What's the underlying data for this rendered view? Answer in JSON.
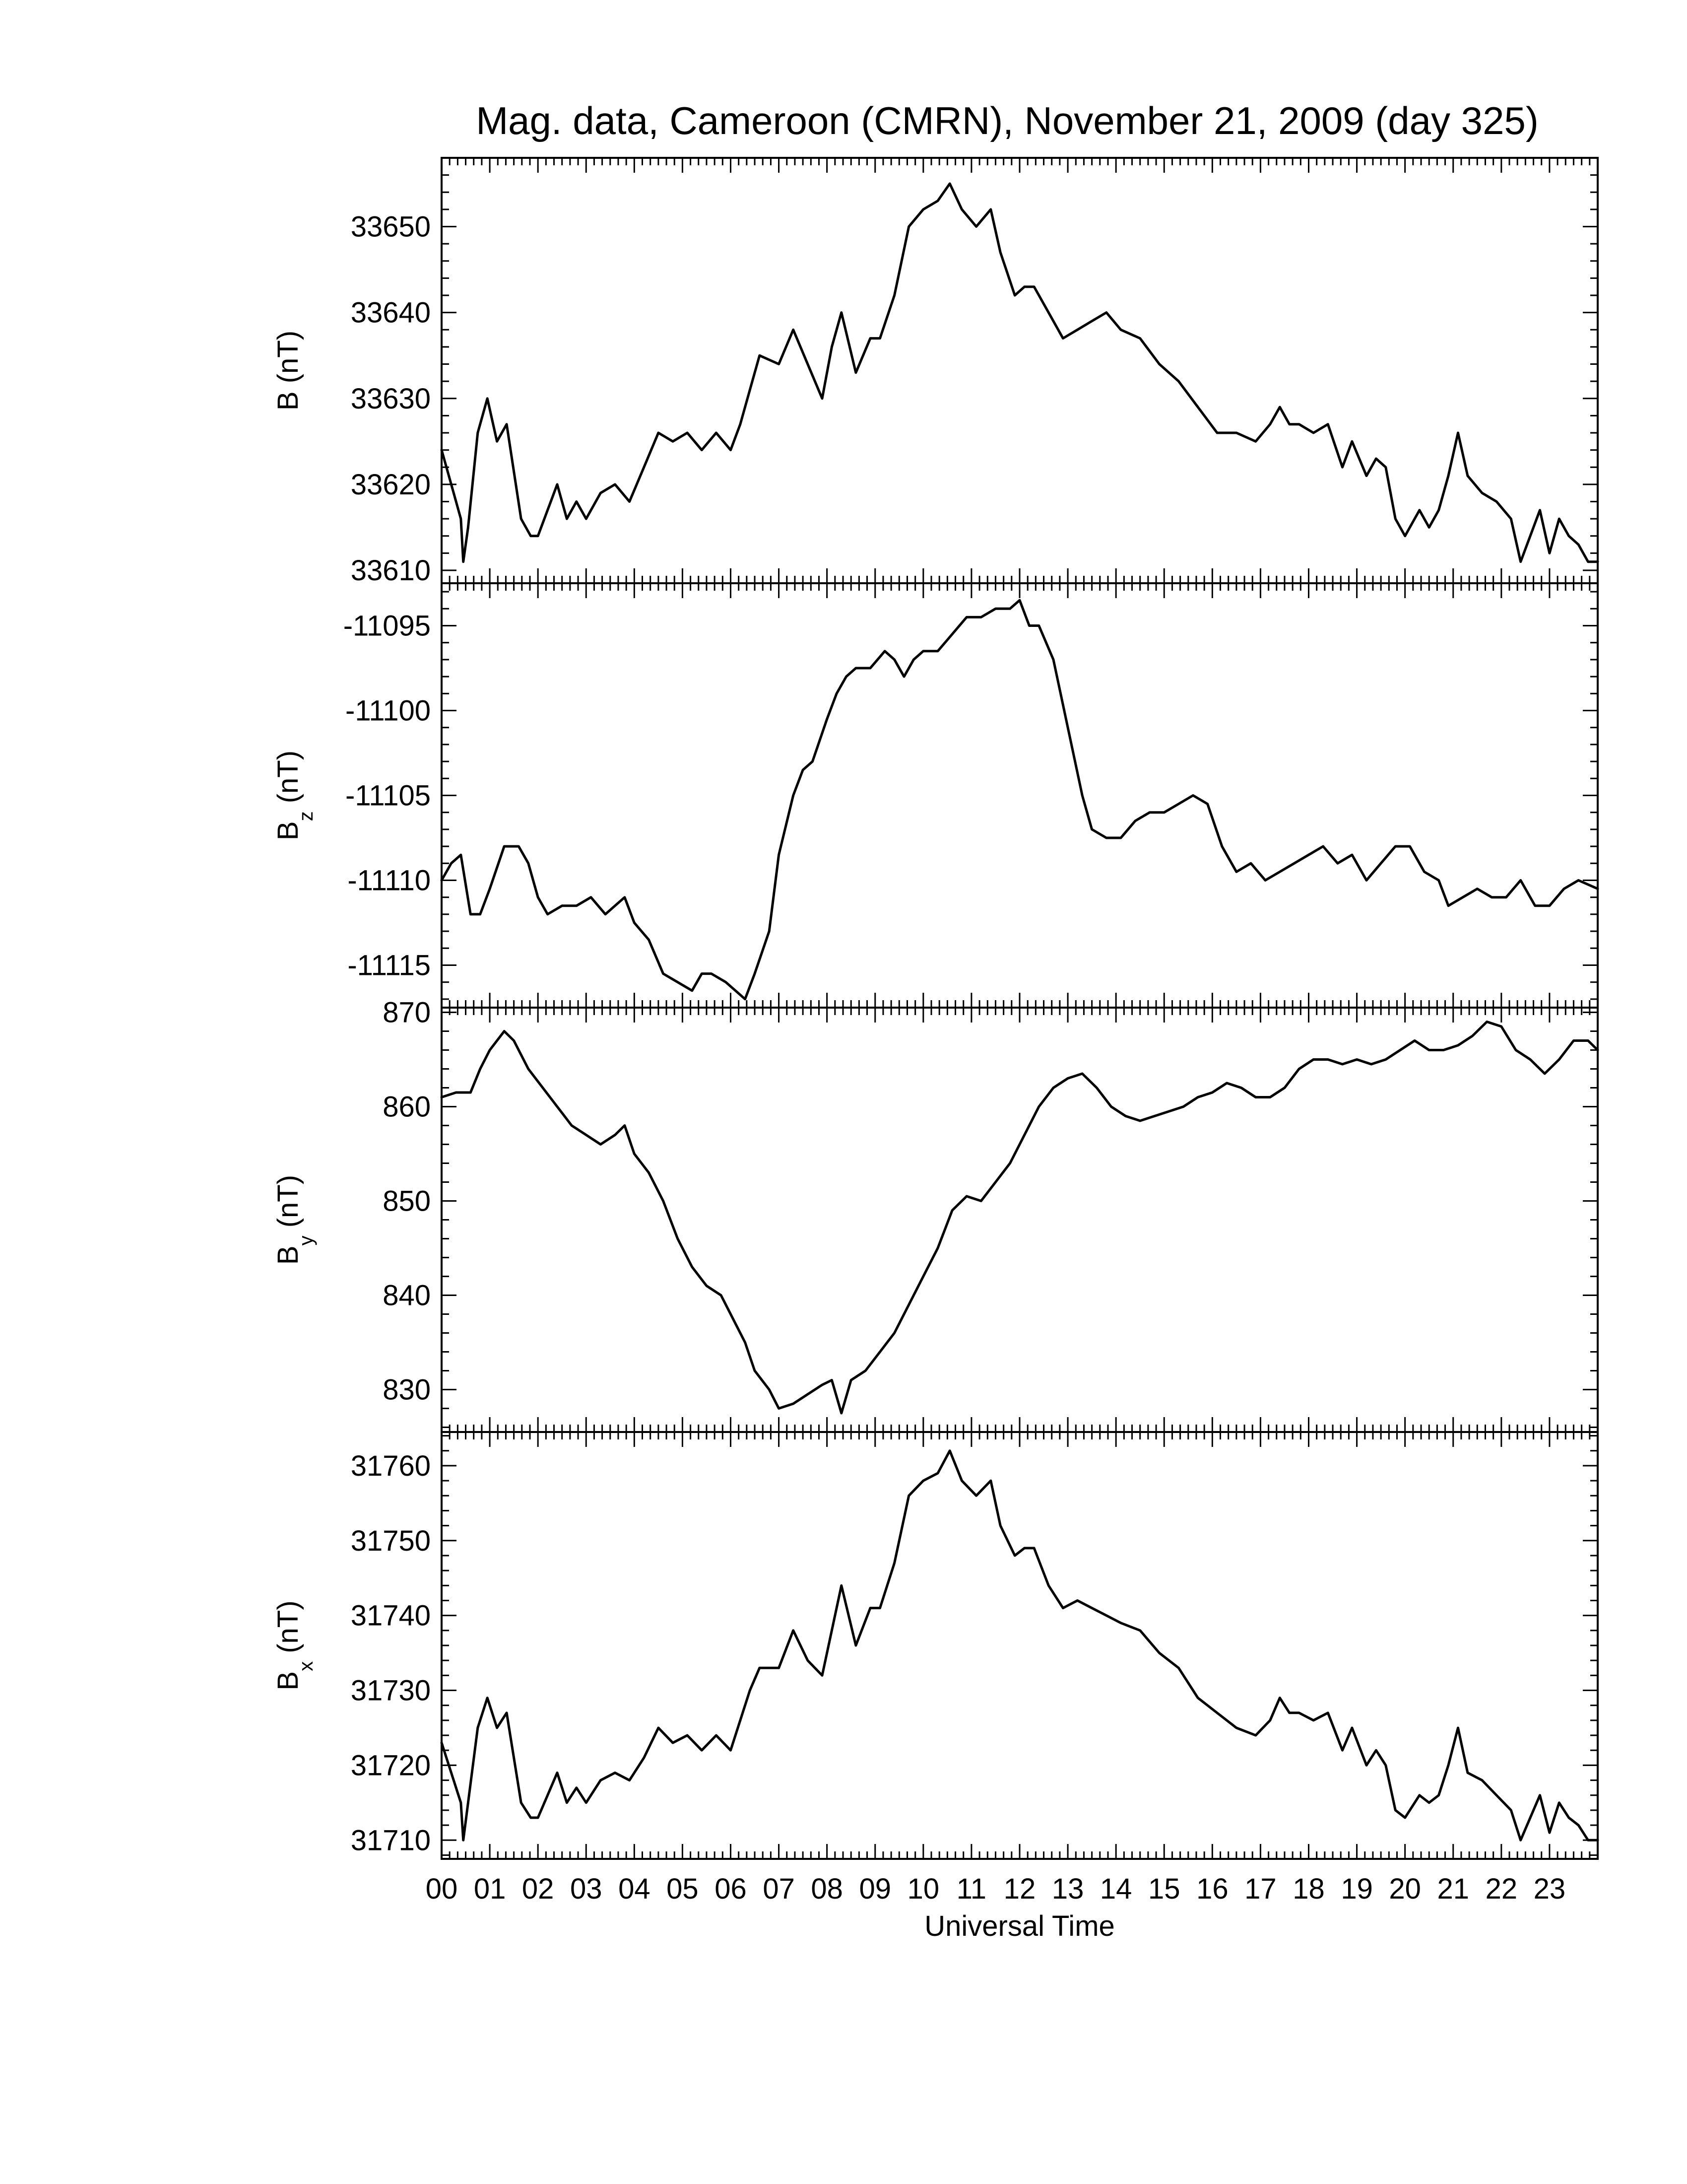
{
  "chart_data": {
    "type": "line",
    "title": "Mag. data, Cameroon (CMRN), November 21, 2009 (day 325)",
    "xlabel": "Universal Time",
    "xlim": [
      0,
      24
    ],
    "x_tick_labels": [
      "00",
      "01",
      "02",
      "03",
      "04",
      "05",
      "06",
      "07",
      "08",
      "09",
      "10",
      "11",
      "12",
      "13",
      "14",
      "15",
      "16",
      "17",
      "18",
      "19",
      "20",
      "21",
      "22",
      "23"
    ],
    "panels": [
      {
        "id": "B",
        "ylabel": "B (nT)",
        "ylabel_main": "B",
        "ylabel_sub": "",
        "ylabel_unit": " (nT)",
        "ylim": [
          33608.5,
          33658
        ],
        "yticks": [
          33610,
          33620,
          33630,
          33640,
          33650
        ],
        "yticklabels": [
          "33610",
          "33620",
          "33630",
          "33640",
          "33650"
        ],
        "series": {
          "x": [
            0,
            0.25,
            0.4,
            0.45,
            0.55,
            0.75,
            0.95,
            1.15,
            1.35,
            1.65,
            1.85,
            2.0,
            2.2,
            2.4,
            2.6,
            2.8,
            3.0,
            3.3,
            3.6,
            3.9,
            4.2,
            4.5,
            4.8,
            5.1,
            5.4,
            5.7,
            6.0,
            6.2,
            6.4,
            6.6,
            7.0,
            7.3,
            7.6,
            7.9,
            8.1,
            8.3,
            8.6,
            8.9,
            9.1,
            9.4,
            9.7,
            10.0,
            10.3,
            10.55,
            10.8,
            11.1,
            11.4,
            11.6,
            11.9,
            12.1,
            12.3,
            12.6,
            12.9,
            13.2,
            13.5,
            13.8,
            14.1,
            14.5,
            14.9,
            15.3,
            15.7,
            16.1,
            16.5,
            16.9,
            17.2,
            17.4,
            17.6,
            17.8,
            18.1,
            18.4,
            18.7,
            18.9,
            19.2,
            19.4,
            19.6,
            19.8,
            20.0,
            20.3,
            20.5,
            20.7,
            20.9,
            21.1,
            21.3,
            21.6,
            21.9,
            22.2,
            22.4,
            22.6,
            22.8,
            23.0,
            23.2,
            23.4,
            23.6,
            23.8,
            24.0
          ],
          "y": [
            33624,
            33619,
            33616,
            33611,
            33615,
            33626,
            33630,
            33625,
            33627,
            33616,
            33614,
            33614,
            33617,
            33620,
            33616,
            33618,
            33616,
            33619,
            33620,
            33618,
            33622,
            33626,
            33625,
            33626,
            33624,
            33626,
            33624,
            33627,
            33631,
            33635,
            33634,
            33638,
            33634,
            33630,
            33636,
            33640,
            33633,
            33637,
            33637,
            33642,
            33650,
            33652,
            33653,
            33655,
            33652,
            33650,
            33652,
            33647,
            33642,
            33643,
            33643,
            33640,
            33637,
            33638,
            33639,
            33640,
            33638,
            33637,
            33634,
            33632,
            33629,
            33626,
            33626,
            33625,
            33627,
            33629,
            33627,
            33627,
            33626,
            33627,
            33622,
            33625,
            33621,
            33623,
            33622,
            33616,
            33614,
            33617,
            33615,
            33617,
            33621,
            33626,
            33621,
            33619,
            33618,
            33616,
            33611,
            33614,
            33617,
            33612,
            33616,
            33614,
            33613,
            33611,
            33611
          ]
        }
      },
      {
        "id": "Bz",
        "ylabel": "Bz (nT)",
        "ylabel_main": "B",
        "ylabel_sub": "z",
        "ylabel_unit": " (nT)",
        "ylim": [
          -11117.5,
          -11092.5
        ],
        "yticks": [
          -11115,
          -11110,
          -11105,
          -11100,
          -11095
        ],
        "yticklabels": [
          "-11115",
          "-11110",
          "-11105",
          "-11100",
          "-11095"
        ],
        "series": {
          "x": [
            0,
            0.2,
            0.4,
            0.6,
            0.8,
            1.0,
            1.3,
            1.6,
            1.8,
            2.0,
            2.2,
            2.5,
            2.8,
            3.1,
            3.4,
            3.6,
            3.8,
            4.0,
            4.3,
            4.6,
            4.9,
            5.2,
            5.4,
            5.6,
            5.9,
            6.1,
            6.3,
            6.5,
            6.8,
            7.0,
            7.3,
            7.5,
            7.7,
            8.0,
            8.2,
            8.4,
            8.6,
            8.9,
            9.2,
            9.4,
            9.6,
            9.8,
            10.0,
            10.3,
            10.6,
            10.9,
            11.2,
            11.5,
            11.8,
            12.0,
            12.2,
            12.4,
            12.7,
            13.0,
            13.3,
            13.5,
            13.8,
            14.1,
            14.4,
            14.7,
            15.0,
            15.3,
            15.6,
            15.9,
            16.2,
            16.5,
            16.8,
            17.1,
            17.4,
            17.7,
            18.0,
            18.3,
            18.6,
            18.9,
            19.2,
            19.5,
            19.8,
            20.1,
            20.4,
            20.7,
            20.9,
            21.2,
            21.5,
            21.8,
            22.1,
            22.4,
            22.7,
            23.0,
            23.3,
            23.6,
            24.0
          ],
          "y": [
            -11110,
            -11109,
            -11108.5,
            -11112,
            -11112,
            -11110.5,
            -11108,
            -11108,
            -11109,
            -11111,
            -11112,
            -11111.5,
            -11111.5,
            -11111,
            -11112,
            -11111.5,
            -11111,
            -11112.5,
            -11113.5,
            -11115.5,
            -11116,
            -11116.5,
            -11115.5,
            -11115.5,
            -11116,
            -11116.5,
            -11117,
            -11115.5,
            -11113,
            -11108.5,
            -11105,
            -11103.5,
            -11103,
            -11100.5,
            -11099,
            -11098,
            -11097.5,
            -11097.5,
            -11096.5,
            -11097,
            -11098,
            -11097,
            -11096.5,
            -11096.5,
            -11095.5,
            -11094.5,
            -11094.5,
            -11094,
            -11094,
            -11093.5,
            -11095,
            -11095,
            -11097,
            -11101,
            -11105,
            -11107,
            -11107.5,
            -11107.5,
            -11106.5,
            -11106,
            -11106,
            -11105.5,
            -11105,
            -11105.5,
            -11108,
            -11109.5,
            -11109,
            -11110,
            -11109.5,
            -11109,
            -11108.5,
            -11108,
            -11109,
            -11108.5,
            -11110,
            -11109,
            -11108,
            -11108,
            -11109.5,
            -11110,
            -11111.5,
            -11111,
            -11110.5,
            -11111,
            -11111,
            -11110,
            -11111.5,
            -11111.5,
            -11110.5,
            -11110,
            -11110.5
          ]
        }
      },
      {
        "id": "By",
        "ylabel": "By (nT)",
        "ylabel_main": "B",
        "ylabel_sub": "y",
        "ylabel_unit": " (nT)",
        "ylim": [
          825.5,
          870.5
        ],
        "yticks": [
          830,
          840,
          850,
          860,
          870
        ],
        "yticklabels": [
          "830",
          "840",
          "850",
          "860",
          "870"
        ],
        "series": {
          "x": [
            0,
            0.3,
            0.6,
            0.8,
            1.0,
            1.3,
            1.5,
            1.8,
            2.1,
            2.4,
            2.7,
            3.0,
            3.3,
            3.6,
            3.8,
            4.0,
            4.3,
            4.6,
            4.9,
            5.2,
            5.5,
            5.8,
            6.0,
            6.3,
            6.5,
            6.8,
            7.0,
            7.3,
            7.6,
            7.9,
            8.1,
            8.3,
            8.5,
            8.8,
            9.1,
            9.4,
            9.7,
            10.0,
            10.3,
            10.6,
            10.9,
            11.2,
            11.5,
            11.8,
            12.1,
            12.4,
            12.7,
            13.0,
            13.3,
            13.6,
            13.9,
            14.2,
            14.5,
            14.8,
            15.1,
            15.4,
            15.7,
            16.0,
            16.3,
            16.6,
            16.9,
            17.2,
            17.5,
            17.8,
            18.1,
            18.4,
            18.7,
            19.0,
            19.3,
            19.6,
            19.9,
            20.2,
            20.5,
            20.8,
            21.1,
            21.4,
            21.7,
            22.0,
            22.3,
            22.6,
            22.9,
            23.2,
            23.5,
            23.8,
            24.0
          ],
          "y": [
            861,
            861.5,
            861.5,
            864,
            866,
            868,
            867,
            864,
            862,
            860,
            858,
            857,
            856,
            857,
            858,
            855,
            853,
            850,
            846,
            843,
            841,
            840,
            838,
            835,
            832,
            830,
            828,
            828.5,
            829.5,
            830.5,
            831,
            827.5,
            831,
            832,
            834,
            836,
            839,
            842,
            845,
            849,
            850.5,
            850,
            852,
            854,
            857,
            860,
            862,
            863,
            863.5,
            862,
            860,
            859,
            858.5,
            859,
            859.5,
            860,
            861,
            861.5,
            862.5,
            862,
            861,
            861,
            862,
            864,
            865,
            865,
            864.5,
            865,
            864.5,
            865,
            866,
            867,
            866,
            866,
            866.5,
            867.5,
            869,
            868.5,
            866,
            865,
            863.5,
            865,
            867,
            867,
            866
          ]
        }
      },
      {
        "id": "Bx",
        "ylabel": "Bx (nT)",
        "ylabel_main": "B",
        "ylabel_sub": "x",
        "ylabel_unit": " (nT)",
        "ylim": [
          31707.5,
          31764.5
        ],
        "yticks": [
          31710,
          31720,
          31730,
          31740,
          31750,
          31760
        ],
        "yticklabels": [
          "31710",
          "31720",
          "31730",
          "31740",
          "31750",
          "31760"
        ],
        "series": {
          "x": [
            0,
            0.25,
            0.4,
            0.45,
            0.55,
            0.75,
            0.95,
            1.15,
            1.35,
            1.65,
            1.85,
            2.0,
            2.2,
            2.4,
            2.6,
            2.8,
            3.0,
            3.3,
            3.6,
            3.9,
            4.2,
            4.5,
            4.8,
            5.1,
            5.4,
            5.7,
            6.0,
            6.2,
            6.4,
            6.6,
            7.0,
            7.3,
            7.6,
            7.9,
            8.1,
            8.3,
            8.6,
            8.9,
            9.1,
            9.4,
            9.7,
            10.0,
            10.3,
            10.55,
            10.8,
            11.1,
            11.4,
            11.6,
            11.9,
            12.1,
            12.3,
            12.6,
            12.9,
            13.2,
            13.5,
            13.8,
            14.1,
            14.5,
            14.9,
            15.3,
            15.7,
            16.1,
            16.5,
            16.9,
            17.2,
            17.4,
            17.6,
            17.8,
            18.1,
            18.4,
            18.7,
            18.9,
            19.2,
            19.4,
            19.6,
            19.8,
            20.0,
            20.3,
            20.5,
            20.7,
            20.9,
            21.1,
            21.3,
            21.6,
            21.9,
            22.2,
            22.4,
            22.6,
            22.8,
            23.0,
            23.2,
            23.4,
            23.6,
            23.8,
            24.0
          ],
          "y": [
            31723,
            31718,
            31715,
            31710,
            31715,
            31725,
            31729,
            31725,
            31727,
            31715,
            31713,
            31713,
            31716,
            31719,
            31715,
            31717,
            31715,
            31718,
            31719,
            31718,
            31721,
            31725,
            31723,
            31724,
            31722,
            31724,
            31722,
            31726,
            31730,
            31733,
            31733,
            31738,
            31734,
            31732,
            31738,
            31744,
            31736,
            31741,
            31741,
            31747,
            31756,
            31758,
            31759,
            31762,
            31758,
            31756,
            31758,
            31752,
            31748,
            31749,
            31749,
            31744,
            31741,
            31742,
            31741,
            31740,
            31739,
            31738,
            31735,
            31733,
            31729,
            31727,
            31725,
            31724,
            31726,
            31729,
            31727,
            31727,
            31726,
            31727,
            31722,
            31725,
            31720,
            31722,
            31720,
            31714,
            31713,
            31716,
            31715,
            31716,
            31720,
            31725,
            31719,
            31718,
            31716,
            31714,
            31710,
            31713,
            31716,
            31711,
            31715,
            31713,
            31712,
            31710,
            31710
          ]
        }
      }
    ],
    "grid": false,
    "legend": "none"
  }
}
